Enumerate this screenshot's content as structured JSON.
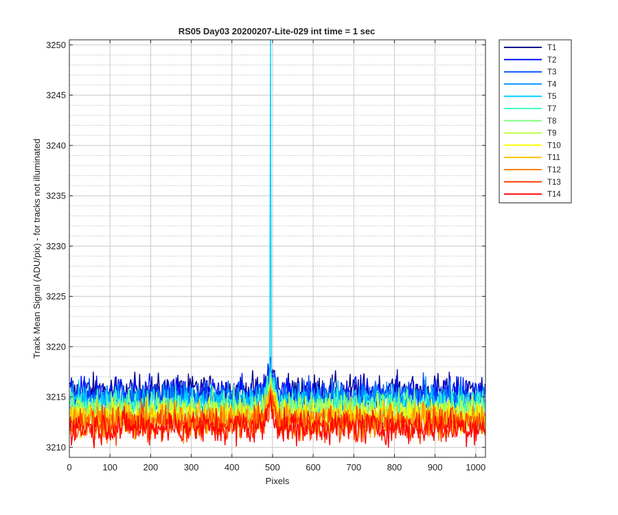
{
  "chart_data": {
    "type": "line",
    "title": "RS05 Day03 20200207-Lite-029 int time = 1 sec",
    "xlabel": "Pixels",
    "ylabel": "Track Mean Signal (ADU/pix) - for tracks not illuminated",
    "xlim": [
      0,
      1024
    ],
    "ylim": [
      3209,
      3250.5
    ],
    "xticks": [
      0,
      100,
      200,
      300,
      400,
      500,
      600,
      700,
      800,
      900,
      1000
    ],
    "yticks": [
      3210,
      3215,
      3220,
      3225,
      3230,
      3235,
      3240,
      3245,
      3250
    ],
    "grid": "major solid, minor dotted",
    "legend_position": "outside-right-top",
    "spike": {
      "x": 495,
      "peak": 3250.5,
      "series": "T5"
    },
    "series": [
      {
        "name": "T1",
        "color": "#00008f",
        "mean": 3215.6
      },
      {
        "name": "T2",
        "color": "#0010ff",
        "mean": 3215.3
      },
      {
        "name": "T3",
        "color": "#0050ff",
        "mean": 3215.0
      },
      {
        "name": "T4",
        "color": "#0090ff",
        "mean": 3214.7
      },
      {
        "name": "T5",
        "color": "#00d0ff",
        "mean": 3214.4
      },
      {
        "name": "T7",
        "color": "#40ffbf",
        "mean": 3214.0
      },
      {
        "name": "T8",
        "color": "#80ff80",
        "mean": 3213.7
      },
      {
        "name": "T9",
        "color": "#bfff40",
        "mean": 3213.4
      },
      {
        "name": "T10",
        "color": "#ffff00",
        "mean": 3213.1
      },
      {
        "name": "T11",
        "color": "#ffbf00",
        "mean": 3212.8
      },
      {
        "name": "T12",
        "color": "#ff8000",
        "mean": 3212.6
      },
      {
        "name": "T13",
        "color": "#ff4000",
        "mean": 3212.3
      },
      {
        "name": "T14",
        "color": "#ff0000",
        "mean": 3212.0
      }
    ]
  }
}
